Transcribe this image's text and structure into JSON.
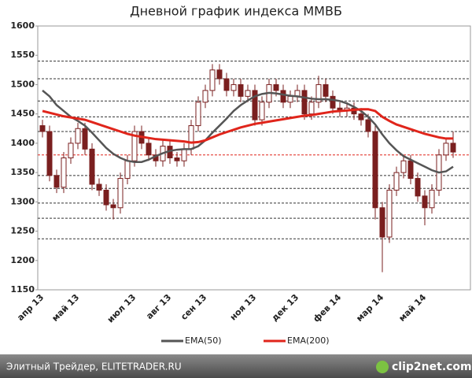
{
  "chart_data": {
    "type": "candlestick",
    "title": "Дневной график индекса ММВБ",
    "categories": [
      "апр 13",
      null,
      null,
      null,
      null,
      "май 13",
      null,
      null,
      null,
      null,
      null,
      null,
      null,
      "июл 13",
      null,
      null,
      null,
      null,
      "авг 13",
      null,
      null,
      null,
      null,
      "сен 13",
      null,
      null,
      null,
      null,
      null,
      null,
      "ноя 13",
      null,
      null,
      null,
      null,
      null,
      "дек 13",
      null,
      null,
      null,
      null,
      null,
      "фев 14",
      null,
      null,
      null,
      null,
      null,
      "мар 14",
      null,
      null,
      null,
      null,
      null,
      "май 14",
      null,
      null,
      null,
      null
    ],
    "open": [
      1430,
      1420,
      1345,
      1325,
      1375,
      1400,
      1425,
      1390,
      1330,
      1320,
      1295,
      1290,
      1340,
      1370,
      1420,
      1400,
      1380,
      1370,
      1395,
      1375,
      1370,
      1390,
      1430,
      1470,
      1490,
      1525,
      1510,
      1490,
      1500,
      1480,
      1490,
      1440,
      1470,
      1500,
      1490,
      1470,
      1480,
      1490,
      1450,
      1470,
      1500,
      1480,
      1460,
      1455,
      1460,
      1450,
      1440,
      1420,
      1290,
      1240,
      1320,
      1350,
      1370,
      1340,
      1310,
      1290,
      1320,
      1380,
      1400
    ],
    "high": [
      1440,
      1430,
      1355,
      1385,
      1410,
      1435,
      1435,
      1400,
      1340,
      1330,
      1305,
      1350,
      1380,
      1430,
      1430,
      1410,
      1390,
      1405,
      1405,
      1385,
      1400,
      1440,
      1480,
      1500,
      1535,
      1535,
      1520,
      1510,
      1510,
      1500,
      1500,
      1480,
      1510,
      1510,
      1500,
      1490,
      1500,
      1500,
      1480,
      1515,
      1510,
      1490,
      1470,
      1470,
      1470,
      1460,
      1450,
      1430,
      1300,
      1330,
      1360,
      1380,
      1380,
      1350,
      1320,
      1330,
      1390,
      1410,
      1420
    ],
    "low": [
      1410,
      1335,
      1315,
      1315,
      1365,
      1390,
      1380,
      1320,
      1310,
      1285,
      1270,
      1280,
      1330,
      1360,
      1390,
      1370,
      1360,
      1360,
      1365,
      1360,
      1360,
      1380,
      1420,
      1460,
      1480,
      1500,
      1480,
      1480,
      1470,
      1470,
      1430,
      1430,
      1460,
      1480,
      1460,
      1460,
      1470,
      1440,
      1440,
      1460,
      1470,
      1450,
      1445,
      1445,
      1440,
      1430,
      1410,
      1270,
      1180,
      1230,
      1310,
      1340,
      1330,
      1300,
      1260,
      1280,
      1310,
      1370,
      1375
    ],
    "close": [
      1420,
      1345,
      1325,
      1375,
      1400,
      1425,
      1390,
      1330,
      1320,
      1295,
      1290,
      1340,
      1370,
      1420,
      1400,
      1380,
      1370,
      1395,
      1375,
      1370,
      1390,
      1430,
      1470,
      1490,
      1525,
      1510,
      1490,
      1500,
      1480,
      1490,
      1440,
      1470,
      1500,
      1490,
      1470,
      1480,
      1490,
      1450,
      1470,
      1500,
      1480,
      1460,
      1455,
      1460,
      1450,
      1440,
      1420,
      1290,
      1240,
      1320,
      1350,
      1370,
      1340,
      1310,
      1290,
      1320,
      1380,
      1400,
      1385
    ],
    "candle_color": "#7a1f1f",
    "series": [
      {
        "name": "EMA(50)",
        "color": "#555555",
        "values": [
          1490,
          1480,
          1465,
          1455,
          1445,
          1438,
          1430,
          1418,
          1405,
          1392,
          1382,
          1375,
          1370,
          1368,
          1368,
          1372,
          1378,
          1383,
          1387,
          1389,
          1390,
          1390,
          1395,
          1405,
          1418,
          1430,
          1442,
          1455,
          1465,
          1473,
          1480,
          1484,
          1486,
          1485,
          1483,
          1481,
          1480,
          1478,
          1476,
          1475,
          1475,
          1474,
          1472,
          1468,
          1462,
          1455,
          1445,
          1432,
          1415,
          1400,
          1388,
          1378,
          1372,
          1366,
          1360,
          1354,
          1350,
          1352,
          1360
        ]
      },
      {
        "name": "EMA(200)",
        "color": "#e0251b",
        "values": [
          1455,
          1452,
          1449,
          1446,
          1444,
          1442,
          1440,
          1436,
          1432,
          1428,
          1424,
          1420,
          1416,
          1413,
          1411,
          1409,
          1407,
          1406,
          1405,
          1404,
          1403,
          1401,
          1402,
          1405,
          1410,
          1415,
          1419,
          1423,
          1427,
          1430,
          1433,
          1435,
          1437,
          1439,
          1441,
          1443,
          1445,
          1447,
          1448,
          1450,
          1452,
          1454,
          1455,
          1456,
          1457,
          1458,
          1458,
          1455,
          1445,
          1438,
          1432,
          1428,
          1424,
          1420,
          1416,
          1413,
          1410,
          1408,
          1408
        ]
      }
    ],
    "levels": [
      {
        "value": 1540,
        "color": "#333333"
      },
      {
        "value": 1510,
        "color": "#333333"
      },
      {
        "value": 1472,
        "color": "#333333"
      },
      {
        "value": 1445,
        "color": "#333333"
      },
      {
        "value": 1420,
        "color": "#333333"
      },
      {
        "value": 1380,
        "color": "#e0251b"
      },
      {
        "value": 1345,
        "color": "#333333"
      },
      {
        "value": 1323,
        "color": "#333333"
      },
      {
        "value": 1298,
        "color": "#333333"
      },
      {
        "value": 1272,
        "color": "#333333"
      },
      {
        "value": 1237,
        "color": "#333333"
      }
    ],
    "ylim": [
      1150,
      1600
    ],
    "yticks": [
      1150,
      1200,
      1250,
      1300,
      1350,
      1400,
      1450,
      1500,
      1550,
      1600
    ]
  },
  "footer": {
    "source": "Элитный Трейдер, ELITETRADER.RU",
    "logo": "clip2net.com"
  }
}
